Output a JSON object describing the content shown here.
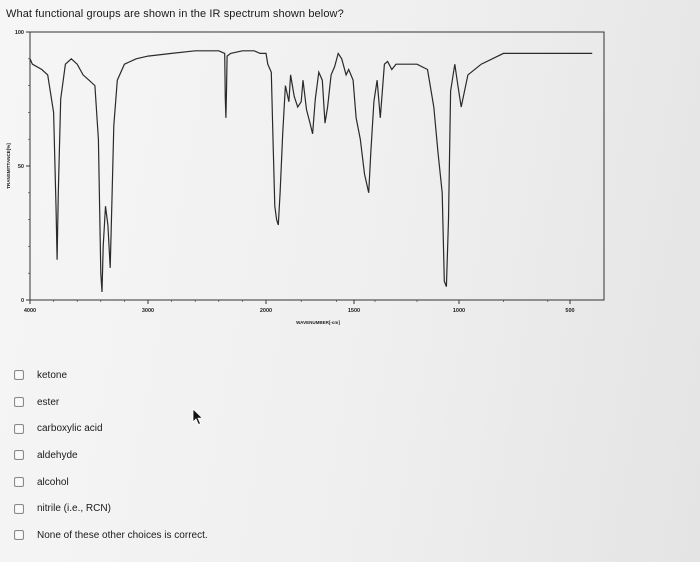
{
  "question": "What functional groups are shown in the IR spectrum shown below?",
  "chart_data": {
    "type": "line",
    "ylabel": "TRANSMITTANCE[%]",
    "xlabel": "WAVENUMBER[-cm]",
    "x_tick_labels": [
      "4000",
      "3000",
      "2000",
      "1500",
      "1000",
      "500"
    ],
    "y_tick_labels": [
      "0",
      "50",
      "100"
    ],
    "xlim": [
      4000,
      400
    ],
    "ylim": [
      0,
      100
    ],
    "series": [
      {
        "points": [
          [
            4000,
            90
          ],
          [
            3980,
            88
          ],
          [
            3900,
            86
          ],
          [
            3850,
            84
          ],
          [
            3800,
            70
          ],
          [
            3780,
            35
          ],
          [
            3770,
            15
          ],
          [
            3760,
            40
          ],
          [
            3740,
            75
          ],
          [
            3700,
            88
          ],
          [
            3650,
            90
          ],
          [
            3600,
            88
          ],
          [
            3550,
            84
          ],
          [
            3500,
            82
          ],
          [
            3450,
            80
          ],
          [
            3420,
            60
          ],
          [
            3400,
            10
          ],
          [
            3390,
            3
          ],
          [
            3380,
            20
          ],
          [
            3360,
            35
          ],
          [
            3340,
            28
          ],
          [
            3320,
            12
          ],
          [
            3305,
            38
          ],
          [
            3290,
            65
          ],
          [
            3260,
            82
          ],
          [
            3200,
            88
          ],
          [
            3100,
            90
          ],
          [
            3000,
            91
          ],
          [
            2800,
            92
          ],
          [
            2600,
            93
          ],
          [
            2400,
            93
          ],
          [
            2350,
            92
          ],
          [
            2345,
            75
          ],
          [
            2340,
            68
          ],
          [
            2335,
            78
          ],
          [
            2330,
            91
          ],
          [
            2300,
            92
          ],
          [
            2200,
            93
          ],
          [
            2100,
            93
          ],
          [
            2050,
            92
          ],
          [
            2000,
            92
          ],
          [
            1990,
            88
          ],
          [
            1970,
            85
          ],
          [
            1960,
            60
          ],
          [
            1950,
            35
          ],
          [
            1940,
            30
          ],
          [
            1930,
            28
          ],
          [
            1920,
            40
          ],
          [
            1905,
            62
          ],
          [
            1890,
            80
          ],
          [
            1870,
            74
          ],
          [
            1860,
            84
          ],
          [
            1840,
            76
          ],
          [
            1820,
            72
          ],
          [
            1800,
            74
          ],
          [
            1790,
            82
          ],
          [
            1770,
            71
          ],
          [
            1750,
            66
          ],
          [
            1735,
            62
          ],
          [
            1720,
            75
          ],
          [
            1700,
            85
          ],
          [
            1680,
            82
          ],
          [
            1665,
            66
          ],
          [
            1650,
            72
          ],
          [
            1630,
            84
          ],
          [
            1610,
            87
          ],
          [
            1590,
            92
          ],
          [
            1570,
            90
          ],
          [
            1545,
            84
          ],
          [
            1530,
            86
          ],
          [
            1505,
            82
          ],
          [
            1490,
            68
          ],
          [
            1470,
            60
          ],
          [
            1450,
            47
          ],
          [
            1430,
            40
          ],
          [
            1420,
            55
          ],
          [
            1405,
            74
          ],
          [
            1390,
            82
          ],
          [
            1375,
            68
          ],
          [
            1355,
            88
          ],
          [
            1340,
            89
          ],
          [
            1320,
            86
          ],
          [
            1300,
            88
          ],
          [
            1200,
            88
          ],
          [
            1150,
            86
          ],
          [
            1120,
            72
          ],
          [
            1100,
            55
          ],
          [
            1080,
            40
          ],
          [
            1070,
            7
          ],
          [
            1060,
            5
          ],
          [
            1050,
            30
          ],
          [
            1040,
            78
          ],
          [
            1020,
            88
          ],
          [
            1005,
            80
          ],
          [
            990,
            72
          ],
          [
            960,
            84
          ],
          [
            900,
            88
          ],
          [
            800,
            92
          ],
          [
            600,
            92
          ],
          [
            400,
            92
          ]
        ]
      }
    ]
  },
  "options": [
    {
      "label": "ketone"
    },
    {
      "label": "ester"
    },
    {
      "label": "carboxylic acid"
    },
    {
      "label": "aldehyde"
    },
    {
      "label": "alcohol"
    },
    {
      "label": "nitrile (i.e., RCN)"
    },
    {
      "label": "None of these other choices is correct."
    }
  ],
  "icons": {
    "cursor": "mouse-pointer-icon",
    "checkbox": "checkbox-icon"
  },
  "colors": {
    "line": "#2a2a2a",
    "background": "#f4f4f4"
  }
}
